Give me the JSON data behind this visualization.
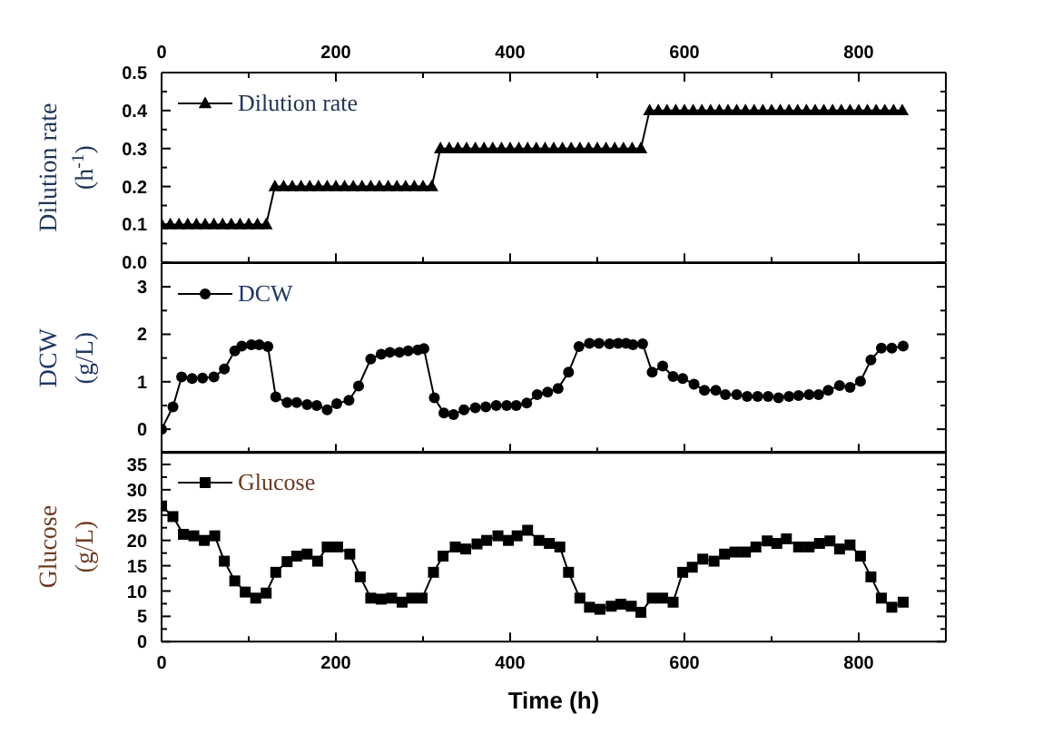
{
  "chart_data": [
    {
      "type": "line",
      "ylabel": "Dilution rate\n(h$^{-1}$)",
      "marker": "triangle",
      "legend": "top left",
      "xlim": [
        0,
        900
      ],
      "xticks": [
        0,
        {
          "value": 100,
          "label": null
        },
        200,
        {
          "value": 300,
          "label": null
        },
        400,
        {
          "value": 500,
          "label": null
        },
        600,
        {
          "value": 700,
          "label": null
        },
        800
      ],
      "ylim": [
        0,
        0.5
      ],
      "yticks": [
        {
          "value": 0,
          "label": "0.0"
        },
        {
          "value": 0.05,
          "label": null
        },
        0.1,
        {
          "value": 0.15,
          "label": null
        },
        0.2,
        {
          "value": 0.25,
          "label": null
        },
        0.3,
        {
          "value": 0.35,
          "label": null
        },
        0.4,
        {
          "value": 0.45,
          "label": null
        },
        0.5
      ],
      "series": [
        {
          "name": "Dilution rate",
          "color": "#000000",
          "x": [
            0,
            10,
            20,
            30,
            40,
            50,
            60,
            70,
            80,
            90,
            100,
            110,
            120,
            130,
            140,
            150,
            160,
            170,
            180,
            190,
            200,
            210,
            220,
            230,
            240,
            250,
            260,
            270,
            280,
            290,
            300,
            310,
            320,
            330,
            340,
            350,
            360,
            370,
            380,
            390,
            400,
            410,
            420,
            430,
            440,
            450,
            460,
            470,
            480,
            490,
            500,
            510,
            520,
            530,
            540,
            550,
            560,
            570,
            580,
            590,
            600,
            610,
            620,
            630,
            640,
            650,
            660,
            670,
            680,
            690,
            700,
            710,
            720,
            730,
            740,
            750,
            760,
            770,
            780,
            790,
            800,
            810,
            820,
            830,
            840,
            850
          ],
          "values": [
            0.1,
            0.1,
            0.1,
            0.1,
            0.1,
            0.1,
            0.1,
            0.1,
            0.1,
            0.1,
            0.1,
            0.1,
            0.1,
            0.2,
            0.2,
            0.2,
            0.2,
            0.2,
            0.2,
            0.2,
            0.2,
            0.2,
            0.2,
            0.2,
            0.2,
            0.2,
            0.2,
            0.2,
            0.2,
            0.2,
            0.2,
            0.2,
            0.3,
            0.3,
            0.3,
            0.3,
            0.3,
            0.3,
            0.3,
            0.3,
            0.3,
            0.3,
            0.3,
            0.3,
            0.3,
            0.3,
            0.3,
            0.3,
            0.3,
            0.3,
            0.3,
            0.3,
            0.3,
            0.3,
            0.3,
            0.3,
            0.4,
            0.4,
            0.4,
            0.4,
            0.4,
            0.4,
            0.4,
            0.4,
            0.4,
            0.4,
            0.4,
            0.4,
            0.4,
            0.4,
            0.4,
            0.4,
            0.4,
            0.4,
            0.4,
            0.4,
            0.4,
            0.4,
            0.4,
            0.4,
            0.4,
            0.4,
            0.4,
            0.4,
            0.4,
            0.4
          ]
        }
      ]
    },
    {
      "type": "line",
      "ylabel": "DCW\n(g/L)",
      "marker": "circle",
      "legend": "top left",
      "tick_labels": "y",
      "xlim": [
        0,
        900
      ],
      "xticks": [
        0,
        {
          "value": 100,
          "label": null
        },
        200,
        {
          "value": 300,
          "label": null
        },
        400,
        {
          "value": 500,
          "label": null
        },
        600,
        {
          "value": 700,
          "label": null
        },
        800
      ],
      "ylim": [
        -0.5,
        3.5
      ],
      "yticks": [
        0,
        {
          "value": 0.5,
          "label": null
        },
        1,
        {
          "value": 1.5,
          "label": null
        },
        2,
        {
          "value": 2.5,
          "label": null
        },
        3
      ],
      "series": [
        {
          "name": "DCW",
          "color": "#000000",
          "x": [
            0,
            13,
            23,
            35,
            47,
            60,
            72,
            84,
            92,
            103,
            112,
            122,
            131,
            144,
            155,
            167,
            178,
            190,
            201,
            215,
            226,
            240,
            252,
            262,
            273,
            283,
            294,
            301,
            313,
            324,
            335,
            347,
            360,
            372,
            384,
            396,
            407,
            419,
            431,
            443,
            455,
            467,
            479,
            491,
            502,
            514,
            524,
            533,
            541,
            552,
            563,
            575,
            587,
            598,
            611,
            623,
            636,
            647,
            660,
            672,
            684,
            696,
            708,
            720,
            731,
            743,
            754,
            765,
            778,
            790,
            802,
            814,
            826,
            838,
            851
          ],
          "values": [
            0,
            0.47,
            1.1,
            1.07,
            1.08,
            1.1,
            1.27,
            1.65,
            1.75,
            1.78,
            1.78,
            1.74,
            0.68,
            0.56,
            0.56,
            0.52,
            0.5,
            0.41,
            0.54,
            0.61,
            0.91,
            1.48,
            1.58,
            1.62,
            1.62,
            1.65,
            1.67,
            1.7,
            0.66,
            0.34,
            0.31,
            0.41,
            0.45,
            0.47,
            0.5,
            0.5,
            0.5,
            0.55,
            0.73,
            0.78,
            0.86,
            1.2,
            1.74,
            1.81,
            1.81,
            1.8,
            1.81,
            1.81,
            1.78,
            1.8,
            1.2,
            1.33,
            1.11,
            1.07,
            0.95,
            0.82,
            0.82,
            0.73,
            0.73,
            0.69,
            0.69,
            0.69,
            0.66,
            0.69,
            0.71,
            0.73,
            0.73,
            0.82,
            0.92,
            0.88,
            1.01,
            1.46,
            1.71,
            1.71,
            1.75
          ]
        }
      ]
    },
    {
      "type": "line",
      "ylabel": "Glucose\n(g/L)",
      "xlabel": "Time (h)",
      "marker": "square",
      "legend": "top left",
      "xlim": [
        0,
        900
      ],
      "xticks": [
        0,
        {
          "value": 100,
          "label": null
        },
        200,
        {
          "value": 300,
          "label": null
        },
        400,
        {
          "value": 500,
          "label": null
        },
        600,
        {
          "value": 700,
          "label": null
        },
        800
      ],
      "ylim": [
        0,
        37.5
      ],
      "yticks": [
        0,
        {
          "value": 2.5,
          "label": null
        },
        5,
        {
          "value": 7.5,
          "label": null
        },
        10,
        {
          "value": 12.5,
          "label": null
        },
        15,
        {
          "value": 17.5,
          "label": null
        },
        20,
        {
          "value": 22.5,
          "label": null
        },
        25,
        {
          "value": 27.5,
          "label": null
        },
        30,
        {
          "value": 32.5,
          "label": null
        },
        35
      ],
      "series": [
        {
          "name": "Glucose",
          "color": "#000000",
          "x": [
            0,
            13,
            25,
            37,
            49,
            61,
            72,
            84,
            96,
            108,
            120,
            131,
            144,
            155,
            167,
            179,
            190,
            202,
            216,
            228,
            240,
            252,
            264,
            276,
            287,
            299,
            312,
            323,
            337,
            349,
            362,
            373,
            386,
            398,
            408,
            420,
            433,
            445,
            457,
            467,
            480,
            491,
            503,
            516,
            527,
            539,
            550,
            563,
            575,
            587,
            598,
            609,
            621,
            634,
            646,
            658,
            670,
            682,
            695,
            706,
            717,
            731,
            743,
            755,
            767,
            778,
            790,
            802,
            814,
            826,
            838,
            851
          ],
          "values": [
            26.8,
            24.7,
            21.2,
            20.9,
            20.0,
            20.9,
            15.9,
            12.0,
            9.8,
            8.6,
            9.6,
            13.7,
            15.8,
            16.9,
            17.3,
            15.9,
            18.7,
            18.7,
            17.3,
            12.8,
            8.6,
            8.4,
            8.6,
            7.8,
            8.6,
            8.6,
            13.7,
            16.9,
            18.7,
            18.3,
            19.3,
            20.0,
            20.9,
            20.0,
            20.9,
            22.0,
            20.0,
            19.4,
            18.7,
            13.7,
            8.6,
            6.8,
            6.4,
            7.0,
            7.4,
            7.0,
            5.8,
            8.6,
            8.6,
            7.8,
            13.7,
            14.7,
            16.3,
            15.9,
            17.3,
            17.7,
            17.7,
            18.7,
            19.9,
            19.4,
            20.3,
            18.7,
            18.7,
            19.4,
            19.9,
            18.3,
            19.1,
            16.9,
            12.8,
            8.6,
            6.8,
            7.8
          ]
        }
      ]
    }
  ]
}
